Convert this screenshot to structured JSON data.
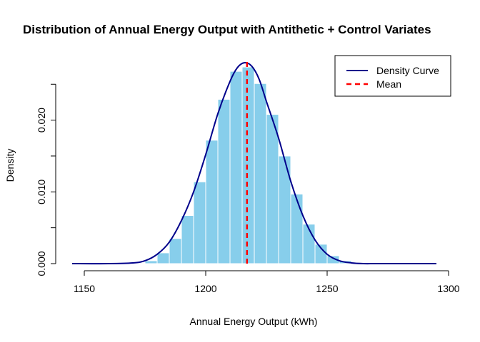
{
  "chart_data": {
    "type": "bar",
    "title": "Distribution of Annual Energy Output with Antithetic + Control Variates",
    "xlabel": "Annual Energy Output (kWh)",
    "ylabel": "Density",
    "xlim": [
      1140,
      1300
    ],
    "ylim": [
      0,
      0.028
    ],
    "x_ticks": [
      "1150",
      "1200",
      "1250",
      "1300"
    ],
    "x_tick_values": [
      1150,
      1200,
      1250,
      1300
    ],
    "y_ticks": [
      "0.000",
      "0.010",
      "0.020"
    ],
    "y_tick_values": [
      0.0,
      0.01,
      0.02
    ],
    "y_minor_ticks": [
      0.005,
      0.015,
      0.025
    ],
    "grid": false,
    "legend_position": "top-right",
    "histogram": {
      "bin_edges": [
        1160,
        1165,
        1170,
        1175,
        1180,
        1185,
        1190,
        1195,
        1200,
        1205,
        1210,
        1215,
        1220,
        1225,
        1230,
        1235,
        1240,
        1245,
        1250,
        1255,
        1260,
        1265,
        1270,
        1275
      ],
      "values": [
        1e-05,
        4e-05,
        0.0001,
        0.0004,
        0.0015,
        0.0035,
        0.0067,
        0.0114,
        0.0172,
        0.0229,
        0.0268,
        0.0274,
        0.0251,
        0.0208,
        0.015,
        0.0097,
        0.0055,
        0.0027,
        0.0011,
        0.0004,
        0.00012,
        4e-05,
        1e-05
      ],
      "fill_color": "#87CEEB",
      "edge_color": "#ffffff"
    },
    "series": [
      {
        "name": "Density Curve",
        "color": "#00008B",
        "style": "solid",
        "x": [
          1145,
          1160,
          1170,
          1175,
          1180,
          1185,
          1190,
          1195,
          1200,
          1205,
          1210,
          1213,
          1216,
          1219,
          1222,
          1225,
          1230,
          1235,
          1240,
          1245,
          1250,
          1255,
          1260,
          1265,
          1270,
          1280,
          1295
        ],
        "values": [
          0.0,
          0.0,
          0.0001,
          0.0004,
          0.0013,
          0.003,
          0.006,
          0.01,
          0.0152,
          0.0209,
          0.0254,
          0.0273,
          0.028,
          0.0275,
          0.0257,
          0.0226,
          0.0175,
          0.0115,
          0.0067,
          0.0033,
          0.0013,
          0.0004,
          0.0001,
          0.0,
          0.0,
          0.0,
          0.0
        ]
      },
      {
        "name": "Mean",
        "color": "#FF0000",
        "style": "dashed",
        "x": [
          1217,
          1217
        ],
        "values": [
          0.0,
          0.0282
        ]
      }
    ]
  }
}
